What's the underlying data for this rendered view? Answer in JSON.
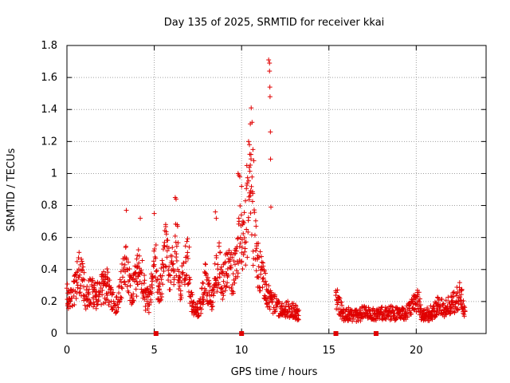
{
  "chart_data": {
    "type": "scatter",
    "title": "Day 135 of 2025, SRMTID for receiver kkai",
    "xlabel": "GPS time / hours",
    "ylabel": "SRMTID / TECUs",
    "xlim": [
      0,
      24
    ],
    "ylim": [
      0,
      1.8
    ],
    "xticks": [
      0,
      5,
      10,
      15,
      20
    ],
    "yticks": [
      0,
      0.2,
      0.4,
      0.6,
      0.8,
      1,
      1.2,
      1.4,
      1.6,
      1.8
    ],
    "xtick_labels": [
      "0",
      "5",
      "10",
      "15",
      "20"
    ],
    "ytick_labels": [
      "0",
      "0.2",
      "0.4",
      "0.6",
      "0.8",
      "1",
      "1.2",
      "1.4",
      "1.6",
      "1.8"
    ],
    "grid": true,
    "marker": "+",
    "color": "#e00000",
    "profile": [
      [
        0.0,
        0.24
      ],
      [
        0.3,
        0.22
      ],
      [
        0.5,
        0.3
      ],
      [
        0.7,
        0.38
      ],
      [
        0.9,
        0.34
      ],
      [
        1.1,
        0.22
      ],
      [
        1.3,
        0.27
      ],
      [
        1.5,
        0.25
      ],
      [
        1.7,
        0.23
      ],
      [
        2.0,
        0.28
      ],
      [
        2.3,
        0.3
      ],
      [
        2.6,
        0.2
      ],
      [
        2.9,
        0.18
      ],
      [
        3.1,
        0.3
      ],
      [
        3.3,
        0.45
      ],
      [
        3.5,
        0.38
      ],
      [
        3.7,
        0.25
      ],
      [
        3.9,
        0.32
      ],
      [
        4.1,
        0.4
      ],
      [
        4.3,
        0.36
      ],
      [
        4.5,
        0.22
      ],
      [
        4.7,
        0.2
      ],
      [
        4.9,
        0.4
      ],
      [
        5.1,
        0.42
      ],
      [
        5.3,
        0.24
      ],
      [
        5.5,
        0.4
      ],
      [
        5.7,
        0.55
      ],
      [
        5.9,
        0.38
      ],
      [
        6.1,
        0.45
      ],
      [
        6.3,
        0.55
      ],
      [
        6.5,
        0.3
      ],
      [
        6.7,
        0.38
      ],
      [
        6.9,
        0.45
      ],
      [
        7.1,
        0.22
      ],
      [
        7.3,
        0.15
      ],
      [
        7.5,
        0.14
      ],
      [
        7.7,
        0.2
      ],
      [
        7.9,
        0.35
      ],
      [
        8.1,
        0.25
      ],
      [
        8.3,
        0.22
      ],
      [
        8.5,
        0.35
      ],
      [
        8.7,
        0.45
      ],
      [
        8.9,
        0.3
      ],
      [
        9.1,
        0.38
      ],
      [
        9.3,
        0.42
      ],
      [
        9.5,
        0.35
      ],
      [
        9.7,
        0.45
      ],
      [
        9.9,
        0.6
      ],
      [
        10.1,
        0.55
      ],
      [
        10.3,
        0.7
      ],
      [
        10.5,
        0.9
      ],
      [
        10.7,
        0.6
      ],
      [
        10.9,
        0.45
      ],
      [
        11.1,
        0.38
      ],
      [
        11.3,
        0.3
      ],
      [
        11.5,
        0.25
      ],
      [
        11.7,
        0.2
      ],
      [
        11.9,
        0.18
      ],
      [
        12.1,
        0.16
      ],
      [
        12.4,
        0.15
      ],
      [
        12.7,
        0.15
      ],
      [
        13.0,
        0.14
      ],
      [
        13.3,
        0.12
      ],
      [
        15.4,
        0.22
      ],
      [
        15.6,
        0.18
      ],
      [
        15.8,
        0.12
      ],
      [
        16.0,
        0.12
      ],
      [
        16.3,
        0.12
      ],
      [
        16.6,
        0.11
      ],
      [
        17.0,
        0.13
      ],
      [
        17.4,
        0.12
      ],
      [
        17.8,
        0.12
      ],
      [
        18.2,
        0.13
      ],
      [
        18.6,
        0.13
      ],
      [
        19.0,
        0.12
      ],
      [
        19.4,
        0.12
      ],
      [
        19.8,
        0.18
      ],
      [
        20.1,
        0.22
      ],
      [
        20.3,
        0.12
      ],
      [
        20.7,
        0.12
      ],
      [
        21.0,
        0.14
      ],
      [
        21.3,
        0.18
      ],
      [
        21.6,
        0.16
      ],
      [
        21.9,
        0.18
      ],
      [
        22.2,
        0.2
      ],
      [
        22.5,
        0.24
      ],
      [
        22.8,
        0.15
      ]
    ],
    "spikes": [
      [
        3.4,
        0.77
      ],
      [
        4.2,
        0.72
      ],
      [
        5.0,
        0.75
      ],
      [
        6.2,
        0.85
      ],
      [
        6.25,
        0.84
      ],
      [
        7.0,
        0.54
      ],
      [
        8.5,
        0.76
      ],
      [
        8.55,
        0.72
      ],
      [
        9.8,
        1.0
      ],
      [
        9.85,
        0.99
      ],
      [
        9.9,
        0.98
      ],
      [
        10.0,
        0.92
      ],
      [
        10.3,
        1.05
      ],
      [
        10.4,
        1.2
      ],
      [
        10.45,
        1.18
      ],
      [
        10.5,
        1.31
      ],
      [
        10.55,
        1.41
      ],
      [
        10.6,
        1.32
      ],
      [
        10.65,
        1.15
      ],
      [
        10.7,
        1.08
      ],
      [
        11.55,
        1.71
      ],
      [
        11.6,
        1.69
      ],
      [
        11.6,
        1.64
      ],
      [
        11.62,
        1.54
      ],
      [
        11.63,
        1.48
      ],
      [
        11.65,
        1.26
      ],
      [
        11.66,
        1.09
      ],
      [
        11.68,
        0.79
      ]
    ],
    "gap_markers": [
      5.1,
      10.0,
      15.4,
      17.7
    ]
  }
}
